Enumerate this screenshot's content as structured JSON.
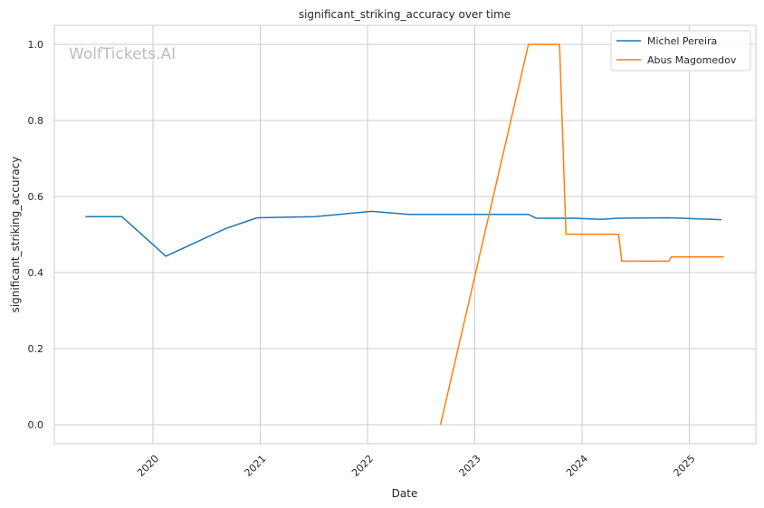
{
  "chart_data": {
    "type": "line",
    "title": "significant_striking_accuracy over time",
    "xlabel": "Date",
    "ylabel": "significant_striking_accuracy",
    "watermark": "WolfTickets.AI",
    "xlim": [
      2019.08,
      2025.62
    ],
    "ylim": [
      -0.05,
      1.05
    ],
    "x_ticks": [
      {
        "value": 2020,
        "label": "2020"
      },
      {
        "value": 2021,
        "label": "2021"
      },
      {
        "value": 2022,
        "label": "2022"
      },
      {
        "value": 2023,
        "label": "2023"
      },
      {
        "value": 2024,
        "label": "2024"
      },
      {
        "value": 2025,
        "label": "2025"
      }
    ],
    "y_ticks": [
      {
        "value": 0.0,
        "label": "0.0"
      },
      {
        "value": 0.2,
        "label": "0.2"
      },
      {
        "value": 0.4,
        "label": "0.4"
      },
      {
        "value": 0.6,
        "label": "0.6"
      },
      {
        "value": 0.8,
        "label": "0.8"
      },
      {
        "value": 1.0,
        "label": "1.0"
      }
    ],
    "grid": true,
    "legend_position": "top-right",
    "series": [
      {
        "name": "Michel Pereira",
        "color": "#1f77b4",
        "points": [
          [
            2019.37,
            0.547
          ],
          [
            2019.71,
            0.547
          ],
          [
            2020.12,
            0.443
          ],
          [
            2020.68,
            0.516
          ],
          [
            2020.97,
            0.544
          ],
          [
            2021.51,
            0.547
          ],
          [
            2022.04,
            0.561
          ],
          [
            2022.38,
            0.553
          ],
          [
            2023.5,
            0.553
          ],
          [
            2023.57,
            0.543
          ],
          [
            2023.91,
            0.543
          ],
          [
            2024.18,
            0.54
          ],
          [
            2024.33,
            0.543
          ],
          [
            2024.81,
            0.544
          ],
          [
            2025.3,
            0.539
          ]
        ]
      },
      {
        "name": "Abus Magomedov",
        "color": "#ff7f0e",
        "points": [
          [
            2022.68,
            0.0
          ],
          [
            2023.5,
            1.0
          ],
          [
            2023.79,
            1.0
          ],
          [
            2023.85,
            0.501
          ],
          [
            2024.34,
            0.501
          ],
          [
            2024.37,
            0.43
          ],
          [
            2024.81,
            0.43
          ],
          [
            2024.83,
            0.441
          ],
          [
            2025.32,
            0.441
          ]
        ]
      }
    ]
  }
}
